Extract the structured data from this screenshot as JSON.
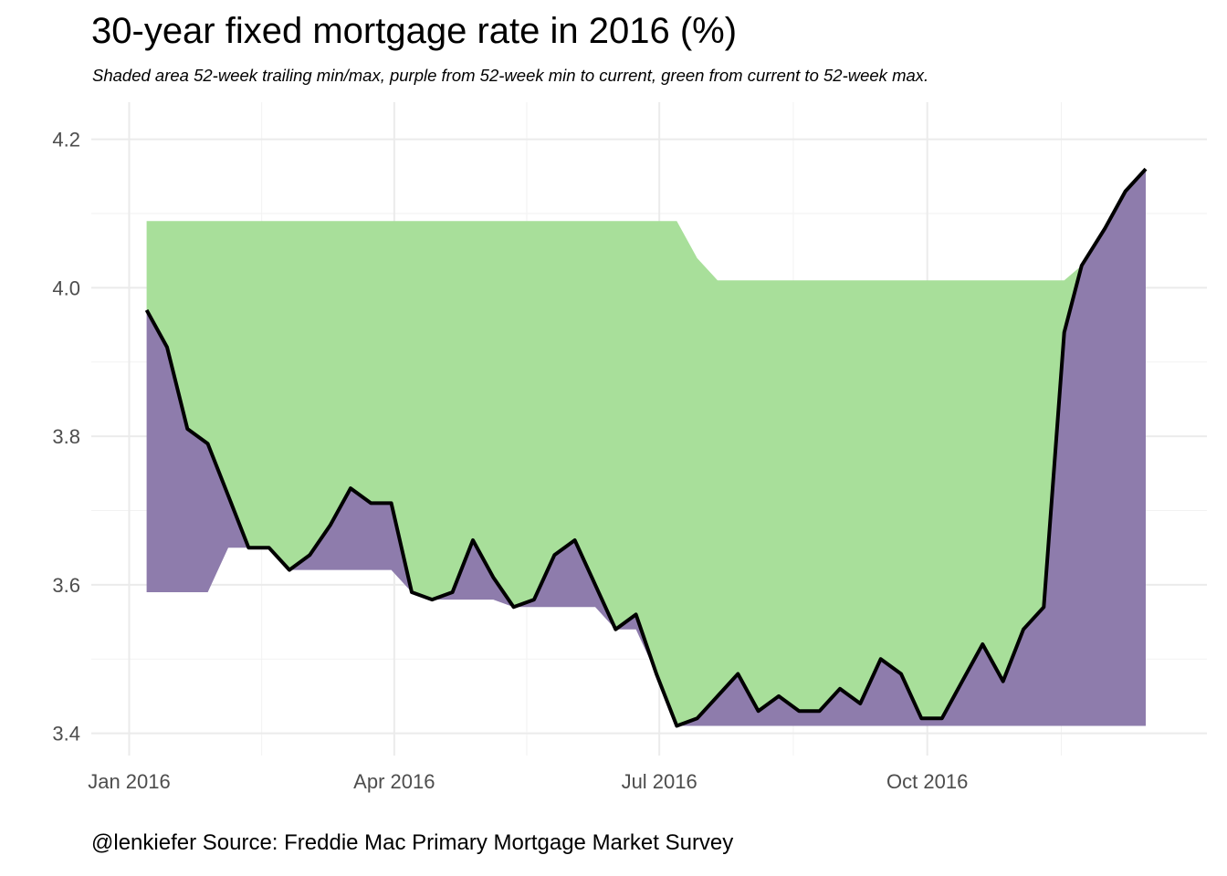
{
  "chart_data": {
    "type": "area",
    "title": "30-year fixed mortgage rate in 2016 (%)",
    "subtitle": "Shaded area 52-week trailing min/max, purple from 52-week min to current, green from current to 52-week max.",
    "caption": "@lenkiefer Source: Freddie Mac Primary Mortgage Market Survey",
    "xlabel": "",
    "ylabel": "",
    "x_ticks": [
      {
        "label": "Jan 2016",
        "date": "2016-01-01"
      },
      {
        "label": "Apr 2016",
        "date": "2016-04-01"
      },
      {
        "label": "Jul 2016",
        "date": "2016-07-01"
      },
      {
        "label": "Oct 2016",
        "date": "2016-10-01"
      }
    ],
    "y_ticks": [
      "3.4",
      "3.6",
      "3.8",
      "4.0",
      "4.2"
    ],
    "xlim": [
      "2015-12-19",
      "2017-01-05"
    ],
    "ylim": [
      3.37,
      4.25
    ],
    "grid": true,
    "colors": {
      "rate_line": "#000000",
      "min_to_current": "#8e7cac",
      "current_to_max": "#a8df9a",
      "gridline": "#ebebeb"
    },
    "series": [
      {
        "name": "rate",
        "dates": [
          "2016-01-07",
          "2016-01-14",
          "2016-01-21",
          "2016-01-28",
          "2016-02-04",
          "2016-02-11",
          "2016-02-18",
          "2016-02-25",
          "2016-03-03",
          "2016-03-10",
          "2016-03-17",
          "2016-03-24",
          "2016-03-31",
          "2016-04-07",
          "2016-04-14",
          "2016-04-21",
          "2016-04-28",
          "2016-05-05",
          "2016-05-12",
          "2016-05-19",
          "2016-05-26",
          "2016-06-02",
          "2016-06-09",
          "2016-06-16",
          "2016-06-23",
          "2016-06-30",
          "2016-07-07",
          "2016-07-14",
          "2016-07-21",
          "2016-07-28",
          "2016-08-04",
          "2016-08-11",
          "2016-08-18",
          "2016-08-25",
          "2016-09-01",
          "2016-09-08",
          "2016-09-15",
          "2016-09-22",
          "2016-09-29",
          "2016-10-06",
          "2016-10-13",
          "2016-10-20",
          "2016-10-27",
          "2016-11-03",
          "2016-11-10",
          "2016-11-17",
          "2016-11-23",
          "2016-12-01",
          "2016-12-08",
          "2016-12-15"
        ],
        "values": [
          3.97,
          3.92,
          3.81,
          3.79,
          3.72,
          3.65,
          3.65,
          3.62,
          3.64,
          3.68,
          3.73,
          3.71,
          3.71,
          3.59,
          3.58,
          3.59,
          3.66,
          3.61,
          3.57,
          3.58,
          3.64,
          3.66,
          3.6,
          3.54,
          3.56,
          3.48,
          3.41,
          3.42,
          3.45,
          3.48,
          3.43,
          3.45,
          3.43,
          3.43,
          3.46,
          3.44,
          3.5,
          3.48,
          3.42,
          3.42,
          3.47,
          3.52,
          3.47,
          3.54,
          3.57,
          3.94,
          4.03,
          4.08,
          4.13,
          4.16
        ]
      },
      {
        "name": "52-week min",
        "values": [
          3.59,
          3.59,
          3.59,
          3.59,
          3.65,
          3.65,
          3.65,
          3.62,
          3.62,
          3.62,
          3.62,
          3.62,
          3.62,
          3.59,
          3.58,
          3.58,
          3.58,
          3.58,
          3.57,
          3.57,
          3.57,
          3.57,
          3.57,
          3.54,
          3.54,
          3.48,
          3.41,
          3.41,
          3.41,
          3.41,
          3.41,
          3.41,
          3.41,
          3.41,
          3.41,
          3.41,
          3.41,
          3.41,
          3.41,
          3.41,
          3.41,
          3.41,
          3.41,
          3.41,
          3.41,
          3.41,
          3.41,
          3.41,
          3.41,
          3.41
        ]
      },
      {
        "name": "52-week max",
        "values": [
          4.09,
          4.09,
          4.09,
          4.09,
          4.09,
          4.09,
          4.09,
          4.09,
          4.09,
          4.09,
          4.09,
          4.09,
          4.09,
          4.09,
          4.09,
          4.09,
          4.09,
          4.09,
          4.09,
          4.09,
          4.09,
          4.09,
          4.09,
          4.09,
          4.09,
          4.09,
          4.09,
          4.04,
          4.01,
          4.01,
          4.01,
          4.01,
          4.01,
          4.01,
          4.01,
          4.01,
          4.01,
          4.01,
          4.01,
          4.01,
          4.01,
          4.01,
          4.01,
          4.01,
          4.01,
          4.01,
          4.03,
          4.08,
          4.13,
          4.16
        ]
      }
    ]
  }
}
